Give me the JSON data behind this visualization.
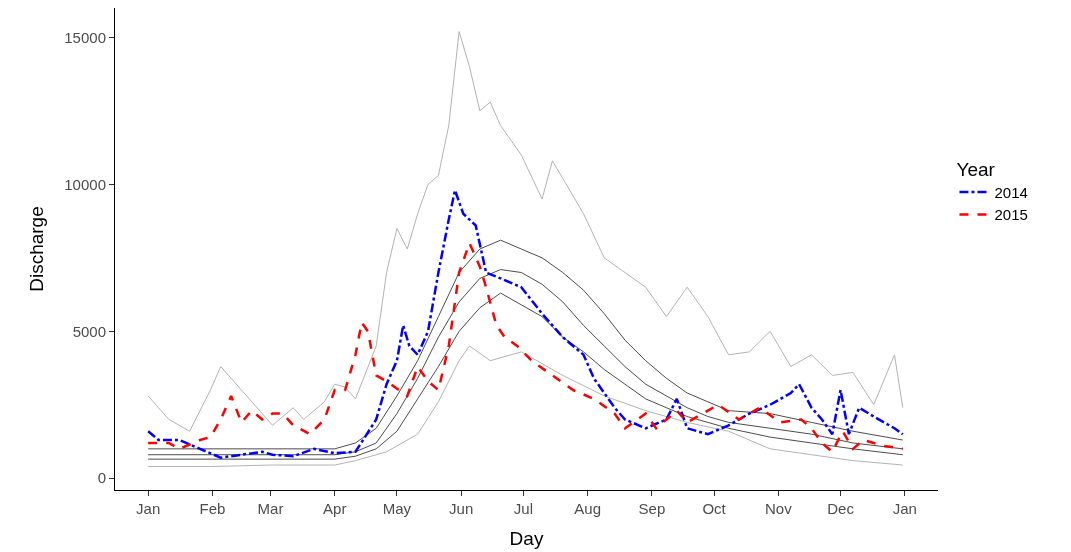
{
  "chart_data": {
    "type": "line",
    "xlabel": "Day",
    "ylabel": "Discharge",
    "legend_title": "Year",
    "legend": "right",
    "xlim": [
      "2014-12-16",
      "2016-01-17"
    ],
    "xticks": [
      {
        "value": "2015-01-01",
        "label": "Jan"
      },
      {
        "value": "2015-02-01",
        "label": "Feb"
      },
      {
        "value": "2015-03-01",
        "label": "Mar"
      },
      {
        "value": "2015-04-01",
        "label": "Apr"
      },
      {
        "value": "2015-05-01",
        "label": "May"
      },
      {
        "value": "2015-06-01",
        "label": "Jun"
      },
      {
        "value": "2015-07-01",
        "label": "Jul"
      },
      {
        "value": "2015-08-01",
        "label": "Aug"
      },
      {
        "value": "2015-09-01",
        "label": "Sep"
      },
      {
        "value": "2015-10-01",
        "label": "Oct"
      },
      {
        "value": "2015-11-01",
        "label": "Nov"
      },
      {
        "value": "2015-12-01",
        "label": "Dec"
      },
      {
        "value": "2016-01-01",
        "label": "Jan"
      }
    ],
    "ylim": [
      -400,
      16000
    ],
    "yticks": [
      0,
      5000,
      10000,
      15000
    ],
    "series": [
      {
        "color": "#b3b3b3",
        "line_style": "solid",
        "x": [
          "2015-01-01",
          "2015-01-11",
          "2015-01-21",
          "2015-01-31",
          "2015-02-05",
          "2015-02-15",
          "2015-02-25",
          "2015-03-02",
          "2015-03-12",
          "2015-03-17",
          "2015-03-27",
          "2015-04-01",
          "2015-04-06",
          "2015-04-11",
          "2015-04-21",
          "2015-04-26",
          "2015-05-01",
          "2015-05-06",
          "2015-05-11",
          "2015-05-16",
          "2015-05-21",
          "2015-05-26",
          "2015-05-31",
          "2015-06-05",
          "2015-06-10",
          "2015-06-15",
          "2015-06-20",
          "2015-06-25",
          "2015-06-30",
          "2015-07-10",
          "2015-07-15",
          "2015-07-30",
          "2015-08-09",
          "2015-08-19",
          "2015-08-29",
          "2015-09-08",
          "2015-09-18",
          "2015-09-28",
          "2015-10-08",
          "2015-10-18",
          "2015-10-28",
          "2015-11-07",
          "2015-11-17",
          "2015-11-27",
          "2015-12-07",
          "2015-12-17",
          "2015-12-27",
          "2015-12-31"
        ],
        "values": [
          2800,
          2000,
          1600,
          3000,
          3800,
          3000,
          2200,
          1800,
          2400,
          2000,
          2600,
          3200,
          3100,
          2700,
          4500,
          7000,
          8500,
          7800,
          9000,
          10000,
          10300,
          12000,
          15200,
          14000,
          12500,
          12800,
          12000,
          11500,
          11000,
          9500,
          10800,
          9000,
          7500,
          7000,
          6500,
          5500,
          6500,
          5500,
          4200,
          4300,
          5000,
          3800,
          4200,
          3500,
          3600,
          2500,
          4200,
          2400
        ]
      },
      {
        "color": "#b3b3b3",
        "line_style": "solid",
        "x": [
          "2015-01-01",
          "2015-01-31",
          "2015-03-02",
          "2015-04-01",
          "2015-04-11",
          "2015-04-26",
          "2015-05-11",
          "2015-05-21",
          "2015-05-31",
          "2015-06-05",
          "2015-06-15",
          "2015-06-30",
          "2015-07-20",
          "2015-08-09",
          "2015-08-29",
          "2015-09-18",
          "2015-10-08",
          "2015-10-28",
          "2015-11-17",
          "2015-12-07",
          "2015-12-31"
        ],
        "values": [
          400,
          400,
          450,
          450,
          600,
          900,
          1500,
          2600,
          4000,
          4500,
          4000,
          4300,
          3500,
          2800,
          2300,
          1900,
          1600,
          1000,
          800,
          600,
          450
        ]
      },
      {
        "color": "#4d4d4d",
        "line_style": "solid",
        "x": [
          "2015-01-01",
          "2015-04-01",
          "2015-04-11",
          "2015-04-21",
          "2015-05-01",
          "2015-05-11",
          "2015-05-21",
          "2015-05-31",
          "2015-06-10",
          "2015-06-20",
          "2015-06-30",
          "2015-07-10",
          "2015-07-20",
          "2015-07-30",
          "2015-08-09",
          "2015-08-19",
          "2015-08-29",
          "2015-09-08",
          "2015-09-18",
          "2015-09-28",
          "2015-10-08",
          "2015-10-28",
          "2015-11-17",
          "2015-12-07",
          "2015-12-31"
        ],
        "values": [
          1000,
          1000,
          1200,
          1700,
          2800,
          4000,
          5500,
          7000,
          7800,
          8100,
          7800,
          7500,
          7000,
          6400,
          5600,
          4700,
          4000,
          3400,
          2900,
          2600,
          2300,
          2200,
          1900,
          1600,
          1300
        ]
      },
      {
        "color": "#4d4d4d",
        "line_style": "solid",
        "x": [
          "2015-01-01",
          "2015-04-01",
          "2015-04-11",
          "2015-04-21",
          "2015-05-01",
          "2015-05-11",
          "2015-05-21",
          "2015-05-31",
          "2015-06-10",
          "2015-06-20",
          "2015-06-30",
          "2015-07-10",
          "2015-07-20",
          "2015-07-30",
          "2015-08-09",
          "2015-08-19",
          "2015-08-29",
          "2015-09-08",
          "2015-09-18",
          "2015-09-28",
          "2015-10-08",
          "2015-10-28",
          "2015-11-17",
          "2015-12-07",
          "2015-12-31"
        ],
        "values": [
          800,
          800,
          900,
          1200,
          2200,
          3400,
          4800,
          6000,
          6800,
          7100,
          7000,
          6600,
          6000,
          5200,
          4500,
          3800,
          3200,
          2800,
          2400,
          2100,
          1900,
          1700,
          1500,
          1200,
          1000
        ]
      },
      {
        "color": "#4d4d4d",
        "line_style": "solid",
        "x": [
          "2015-01-01",
          "2015-04-01",
          "2015-04-11",
          "2015-04-21",
          "2015-05-01",
          "2015-05-11",
          "2015-05-21",
          "2015-05-31",
          "2015-06-10",
          "2015-06-20",
          "2015-06-30",
          "2015-07-10",
          "2015-07-20",
          "2015-07-30",
          "2015-08-09",
          "2015-08-19",
          "2015-08-29",
          "2015-09-08",
          "2015-09-18",
          "2015-09-28",
          "2015-10-08",
          "2015-10-28",
          "2015-11-17",
          "2015-12-07",
          "2015-12-31"
        ],
        "values": [
          650,
          650,
          750,
          1000,
          1600,
          2700,
          3800,
          5000,
          5800,
          6300,
          5900,
          5500,
          4800,
          4300,
          3700,
          3200,
          2700,
          2400,
          2100,
          1900,
          1700,
          1400,
          1200,
          1000,
          800
        ]
      },
      {
        "name": "2014",
        "color": "#0000ff",
        "line_style": "dashdot",
        "x": [
          "2015-01-01",
          "2015-01-06",
          "2015-01-16",
          "2015-01-26",
          "2015-02-05",
          "2015-02-15",
          "2015-02-25",
          "2015-03-02",
          "2015-03-12",
          "2015-03-22",
          "2015-04-01",
          "2015-04-11",
          "2015-04-21",
          "2015-04-26",
          "2015-05-01",
          "2015-05-04",
          "2015-05-07",
          "2015-05-11",
          "2015-05-16",
          "2015-05-21",
          "2015-05-26",
          "2015-05-29",
          "2015-06-02",
          "2015-06-08",
          "2015-06-13",
          "2015-06-20",
          "2015-06-30",
          "2015-07-10",
          "2015-07-20",
          "2015-07-25",
          "2015-07-30",
          "2015-08-04",
          "2015-08-14",
          "2015-08-19",
          "2015-08-29",
          "2015-09-08",
          "2015-09-13",
          "2015-09-18",
          "2015-09-28",
          "2015-10-08",
          "2015-10-18",
          "2015-10-28",
          "2015-11-07",
          "2015-11-11",
          "2015-11-17",
          "2015-11-22",
          "2015-11-27",
          "2015-12-01",
          "2015-12-05",
          "2015-12-10",
          "2015-12-17",
          "2015-12-27",
          "2015-12-31"
        ],
        "values": [
          1600,
          1300,
          1300,
          1000,
          700,
          800,
          900,
          800,
          750,
          1000,
          850,
          900,
          2000,
          3200,
          4000,
          5200,
          4500,
          4200,
          5000,
          7000,
          8800,
          9800,
          9000,
          8600,
          7000,
          6800,
          6500,
          5600,
          4800,
          4500,
          4200,
          3400,
          2400,
          2000,
          1700,
          2000,
          2700,
          1700,
          1500,
          1800,
          2200,
          2500,
          2900,
          3200,
          2400,
          2000,
          1500,
          3000,
          1500,
          2400,
          2100,
          1700,
          1500
        ]
      },
      {
        "name": "2015",
        "color": "#ff0000",
        "line_style": "dashed",
        "x": [
          "2015-01-01",
          "2015-01-11",
          "2015-01-16",
          "2015-01-26",
          "2015-01-31",
          "2015-02-05",
          "2015-02-10",
          "2015-02-15",
          "2015-02-20",
          "2015-02-25",
          "2015-03-02",
          "2015-03-07",
          "2015-03-12",
          "2015-03-20",
          "2015-03-27",
          "2015-04-01",
          "2015-04-06",
          "2015-04-11",
          "2015-04-14",
          "2015-04-17",
          "2015-04-21",
          "2015-04-26",
          "2015-05-06",
          "2015-05-11",
          "2015-05-16",
          "2015-05-21",
          "2015-05-26",
          "2015-05-31",
          "2015-06-05",
          "2015-06-10",
          "2015-06-13",
          "2015-06-18",
          "2015-06-22",
          "2015-06-28",
          "2015-07-05",
          "2015-07-15",
          "2015-07-25",
          "2015-08-04",
          "2015-08-14",
          "2015-08-19",
          "2015-08-29",
          "2015-09-03",
          "2015-09-13",
          "2015-09-18",
          "2015-10-03",
          "2015-10-13",
          "2015-10-23",
          "2015-11-02",
          "2015-11-12",
          "2015-11-17",
          "2015-11-22",
          "2015-11-27",
          "2015-12-02",
          "2015-12-07",
          "2015-12-12",
          "2015-12-22",
          "2015-12-31"
        ],
        "values": [
          1200,
          1200,
          1000,
          1300,
          1400,
          2000,
          2800,
          1900,
          2300,
          2000,
          2200,
          2200,
          1800,
          1500,
          2000,
          3000,
          3000,
          4200,
          5300,
          5000,
          3500,
          3300,
          2800,
          3800,
          3300,
          3000,
          4500,
          7000,
          8000,
          7200,
          6500,
          5200,
          4800,
          4500,
          4000,
          3500,
          3000,
          2700,
          2200,
          1700,
          2200,
          1700,
          2300,
          1900,
          2500,
          2000,
          2400,
          1900,
          2000,
          1700,
          1200,
          900,
          1600,
          1000,
          1300,
          1100,
          1000
        ]
      }
    ]
  }
}
